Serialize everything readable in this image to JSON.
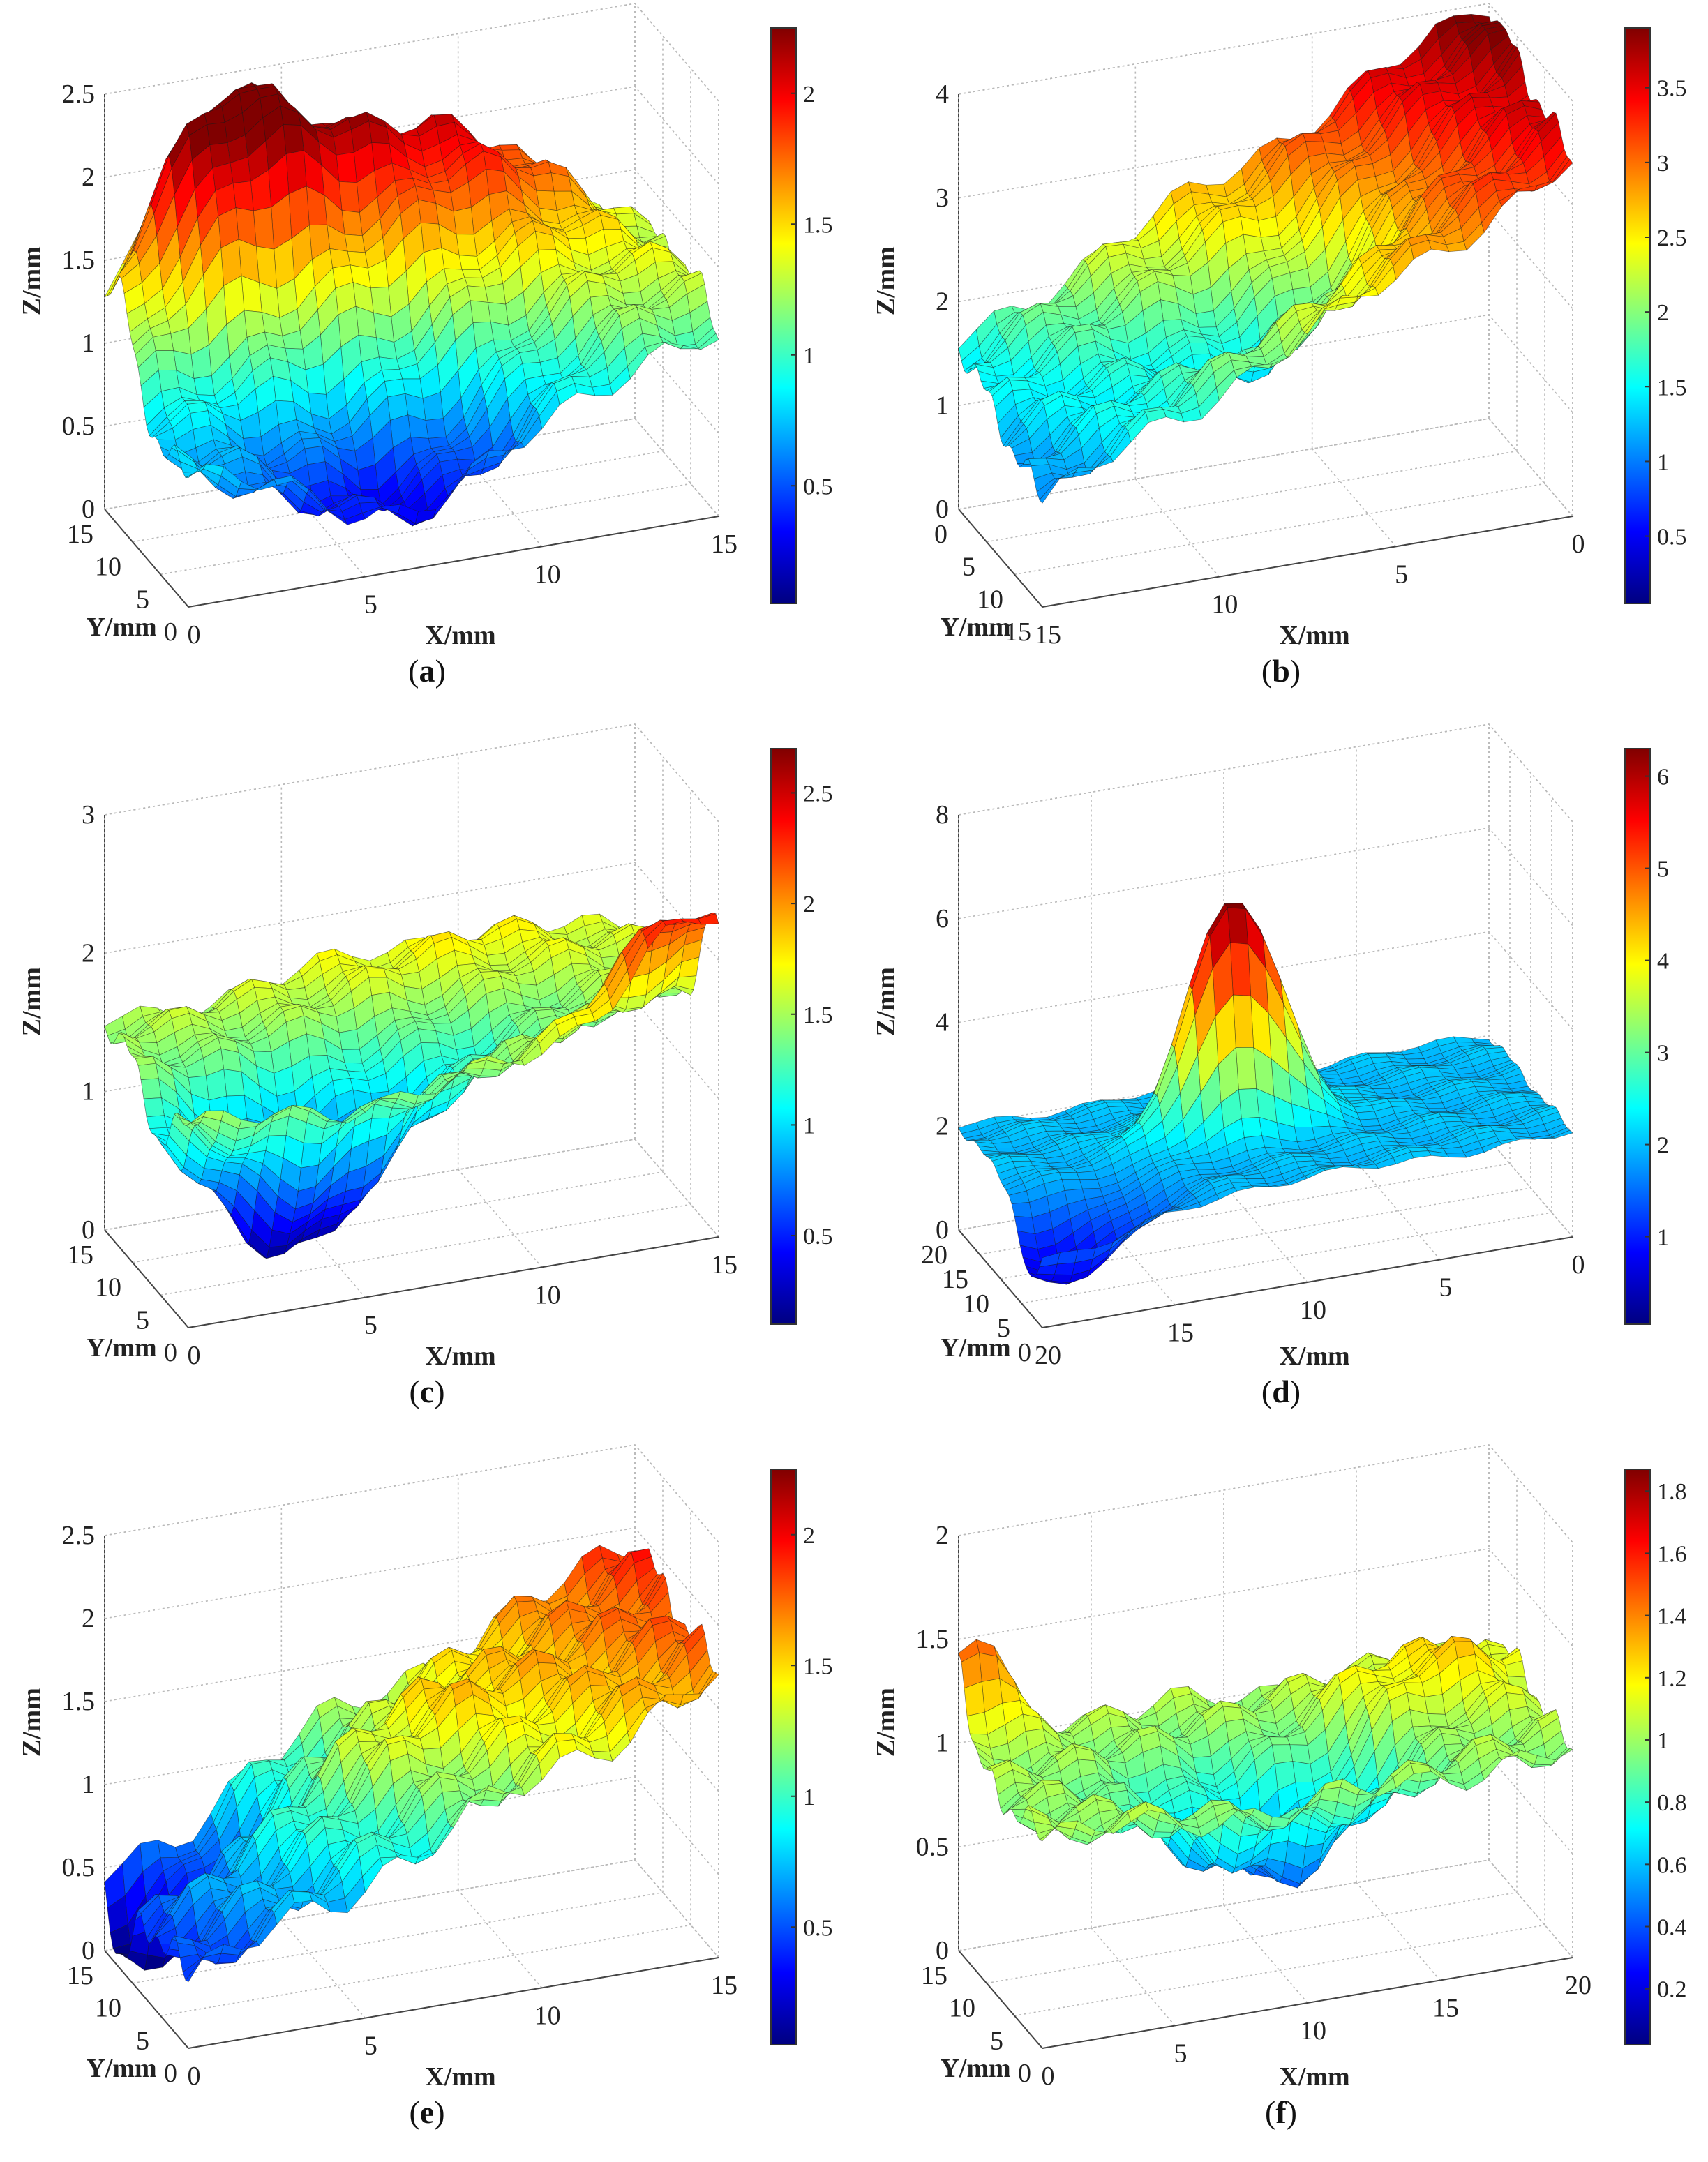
{
  "chart_data": [
    {
      "id": "a",
      "type": "surface3d",
      "caption": "a",
      "xlabel": "X/mm",
      "ylabel": "Y/mm",
      "zlabel": "Z/mm",
      "xticks": [
        "0",
        "5",
        "10",
        "15"
      ],
      "yticks": [
        "0",
        "5",
        "10",
        "15"
      ],
      "zticks": [
        "0",
        "0.5",
        "1",
        "1.5",
        "2",
        "2.5"
      ],
      "zlim": [
        0,
        2.5
      ],
      "x_range": [
        0,
        15
      ],
      "y_range": [
        0,
        15
      ],
      "colorbar": {
        "ticks": [
          "0.5",
          "1",
          "1.5",
          "2"
        ],
        "tick_values": [
          0.5,
          1,
          1.5,
          2
        ],
        "range": [
          0.05,
          2.25
        ]
      },
      "surface": {
        "base": 0.85,
        "terms": [
          [
            1.3,
            0.2,
            0.87,
            0.05
          ],
          [
            -0.7,
            0.45,
            0.15,
            0.1
          ],
          [
            1.1,
            0.6,
            0.85,
            0.12
          ],
          [
            0.5,
            0.85,
            0.3,
            0.15
          ]
        ],
        "ripple": 0.12
      }
    },
    {
      "id": "b",
      "type": "surface3d",
      "caption": "b",
      "xlabel": "X/mm",
      "ylabel": "Y/mm",
      "zlabel": "Z/mm",
      "xticks": [
        "15",
        "10",
        "5",
        "0"
      ],
      "yticks": [
        "15",
        "10",
        "5",
        "0"
      ],
      "zticks": [
        "0",
        "1",
        "2",
        "3",
        "4"
      ],
      "zlim": [
        0,
        4
      ],
      "x_range": [
        15,
        0
      ],
      "y_range": [
        15,
        0
      ],
      "colorbar": {
        "ticks": [
          "0.5",
          "1",
          "1.5",
          "2",
          "2.5",
          "3",
          "3.5"
        ],
        "tick_values": [
          0.5,
          1,
          1.5,
          2,
          2.5,
          3,
          3.5
        ],
        "range": [
          0.05,
          3.9
        ]
      },
      "surface": {
        "base": 1.0,
        "plane": [
          2.4,
          0.6
        ],
        "terms": [
          [
            -1.0,
            0.5,
            0.5,
            0.06
          ]
        ],
        "ripple": 0.18
      }
    },
    {
      "id": "c",
      "type": "surface3d",
      "caption": "c",
      "xlabel": "X/mm",
      "ylabel": "Y/mm",
      "zlabel": "Z/mm",
      "xticks": [
        "0",
        "5",
        "10",
        "15"
      ],
      "yticks": [
        "0",
        "5",
        "10",
        "15"
      ],
      "zticks": [
        "0",
        "1",
        "2",
        "3"
      ],
      "zlim": [
        0,
        3
      ],
      "x_range": [
        0,
        15
      ],
      "y_range": [
        0,
        15
      ],
      "colorbar": {
        "ticks": [
          "0.5",
          "1",
          "1.5",
          "2",
          "2.5"
        ],
        "tick_values": [
          0.5,
          1,
          1.5,
          2,
          2.5
        ],
        "range": [
          0.1,
          2.7
        ]
      },
      "surface": {
        "base": 1.5,
        "terms": [
          [
            -1.3,
            0.25,
            0.35,
            0.05
          ],
          [
            0.9,
            0.95,
            0.05,
            0.03
          ],
          [
            0.4,
            0.6,
            0.8,
            0.1
          ],
          [
            -0.5,
            0.55,
            0.6,
            0.08
          ]
        ],
        "ripple": 0.12
      }
    },
    {
      "id": "d",
      "type": "surface3d",
      "caption": "d",
      "xlabel": "X/mm",
      "ylabel": "Y/mm",
      "zlabel": "Z/mm",
      "xticks": [
        "20",
        "15",
        "10",
        "5",
        "0"
      ],
      "yticks": [
        "0",
        "5",
        "10",
        "15",
        "20"
      ],
      "zticks": [
        "0",
        "2",
        "4",
        "6",
        "8"
      ],
      "zlim": [
        0,
        8
      ],
      "x_range": [
        20,
        0
      ],
      "y_range": [
        0,
        20
      ],
      "colorbar": {
        "ticks": [
          "1",
          "2",
          "3",
          "4",
          "5",
          "6"
        ],
        "tick_values": [
          1,
          2,
          3,
          4,
          5,
          6
        ],
        "range": [
          0.05,
          6.3
        ]
      },
      "surface": {
        "base": 2.0,
        "terms": [
          [
            4.5,
            0.45,
            0.55,
            0.015
          ],
          [
            -1.5,
            0.05,
            0.15,
            0.03
          ]
        ],
        "ripple": 0.12
      }
    },
    {
      "id": "e",
      "type": "surface3d",
      "caption": "e",
      "xlabel": "X/mm",
      "ylabel": "Y/mm",
      "zlabel": "Z/mm",
      "xticks": [
        "0",
        "5",
        "10",
        "15"
      ],
      "yticks": [
        "0",
        "5",
        "10",
        "15"
      ],
      "zticks": [
        "0",
        "0.5",
        "1",
        "1.5",
        "2",
        "2.5"
      ],
      "zlim": [
        0,
        2.5
      ],
      "x_range": [
        0,
        15
      ],
      "y_range": [
        0,
        15
      ],
      "colorbar": {
        "ticks": [
          "0.5",
          "1",
          "1.5",
          "2"
        ],
        "tick_values": [
          0.5,
          1,
          1.5,
          2
        ],
        "range": [
          0.05,
          2.25
        ]
      },
      "surface": {
        "base": 0.4,
        "plane": [
          1.3,
          0.2
        ],
        "terms": [
          [
            -0.6,
            0.05,
            0.8,
            0.03
          ],
          [
            0.3,
            0.5,
            0.5,
            0.05
          ]
        ],
        "ripple": 0.15
      }
    },
    {
      "id": "f",
      "type": "surface3d",
      "caption": "f",
      "xlabel": "X/mm",
      "ylabel": "Y/mm",
      "zlabel": "Z/mm",
      "xticks": [
        "0",
        "5",
        "10",
        "15",
        "20"
      ],
      "yticks": [
        "0",
        "5",
        "10",
        "15"
      ],
      "zticks": [
        "0",
        "0.5",
        "1",
        "1.5",
        "2"
      ],
      "zlim": [
        0,
        2
      ],
      "x_range": [
        0,
        20
      ],
      "y_range": [
        0,
        15
      ],
      "colorbar": {
        "ticks": [
          "0.2",
          "0.4",
          "0.6",
          "0.8",
          "1",
          "1.2",
          "1.4",
          "1.6",
          "1.8"
        ],
        "tick_values": [
          0.2,
          0.4,
          0.6,
          0.8,
          1,
          1.2,
          1.4,
          1.6,
          1.8
        ],
        "range": [
          0.02,
          1.87
        ]
      },
      "surface": {
        "base": 1.0,
        "terms": [
          [
            -0.6,
            0.5,
            0.4,
            0.06
          ],
          [
            0.5,
            0.02,
            0.98,
            0.01
          ],
          [
            0.3,
            0.8,
            0.6,
            0.05
          ]
        ],
        "ripple": 0.1
      }
    }
  ]
}
